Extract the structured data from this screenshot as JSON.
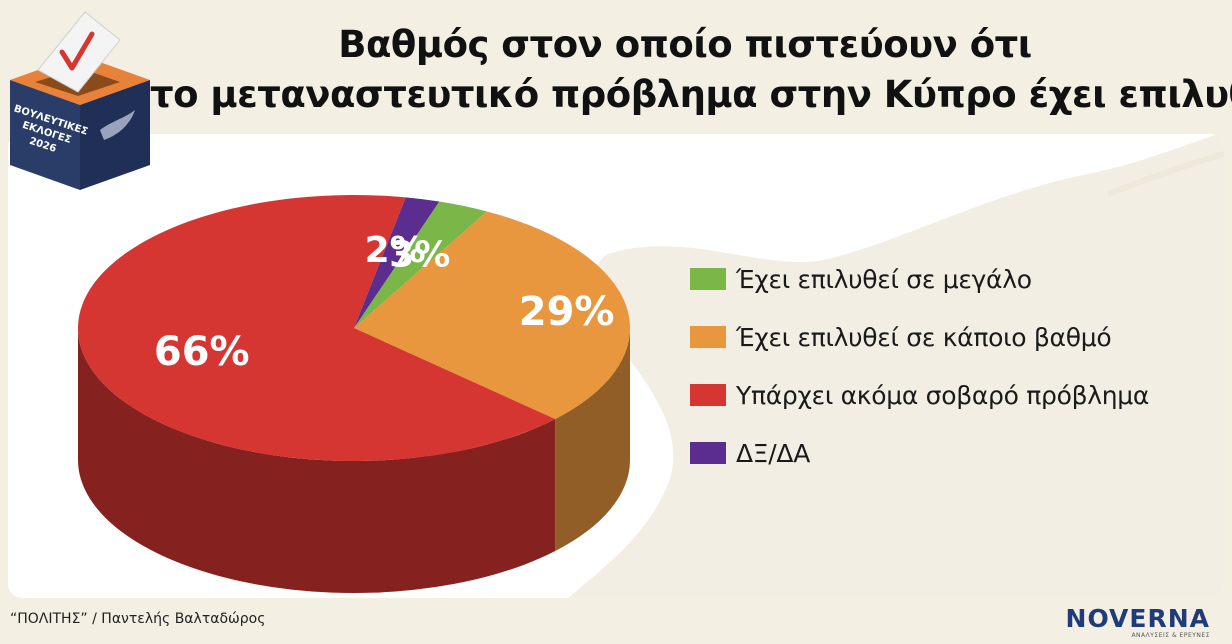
{
  "header": {
    "title_line1": "Βαθμός στον οποίο πιστεύουν ότι",
    "title_line2": "το μεταναστευτικό πρόβλημα στην Κύπρο έχει επιλυθεί"
  },
  "ballot_logo": {
    "text_line1": "ΒΟΥΛΕΥΤΙΚΕΣ",
    "text_line2": "ΕΚΛΟΓΕΣ",
    "text_line3": "2026"
  },
  "chart_data": {
    "type": "pie",
    "title": "Βαθμός στον οποίο πιστεύουν ότι το μεταναστευτικό πρόβλημα στην Κύπρο έχει επιλυθεί",
    "slices": [
      {
        "name": "Έχει επιλυθεί σε μεγάλο",
        "value": 3,
        "label": "3%",
        "color": "#7ab648"
      },
      {
        "name": "Έχει επιλυθεί σε κάποιο βαθμό",
        "value": 29,
        "label": "29%",
        "color": "#e8973e"
      },
      {
        "name": "Υπάρχει ακόμα σοβαρό πρόβλημα",
        "value": 66,
        "label": "66%",
        "color": "#d63632"
      },
      {
        "name": "ΔΞ/ΔΑ",
        "value": 2,
        "label": "2%",
        "color": "#5b2d8e"
      }
    ],
    "legend_placement": "right",
    "style": "3d"
  },
  "footer": {
    "source": "“ΠΟΛΙΤΗΣ” / Παντελής Βαλταδώρος",
    "brand": "NOVERNA",
    "brand_sub": "ΑΝΑΛΥΣΕΙΣ & ΕΡΕΥΝΕΣ"
  }
}
